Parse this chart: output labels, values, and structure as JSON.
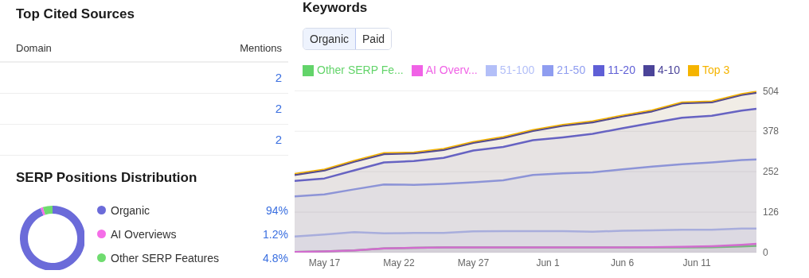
{
  "chart_data": [
    {
      "type": "other",
      "title": "Top Cited Sources",
      "annotations": [
        "Domain",
        "Mentions"
      ],
      "categories": [
        null,
        null,
        null
      ],
      "values": [
        2,
        2,
        2
      ],
      "data_labels": true
    },
    {
      "type": "donut",
      "title": "SERP Positions Distribution",
      "categories": [
        "Organic",
        "AI Overviews",
        "Other SERP Features"
      ],
      "values": [
        94,
        1.2,
        4.8
      ],
      "colors": [
        "#6b6bd9",
        "#f56de8",
        "#6fdc6f"
      ],
      "value_labels": [
        "94%",
        "1.2%",
        "4.8%"
      ],
      "legend": "right"
    },
    {
      "type": "area",
      "title": "Keywords",
      "annotations": [
        "Organic",
        "Paid"
      ],
      "x": [
        "--05-15",
        "--05-17",
        "--05-19",
        "--05-21",
        "--05-23",
        "--05-25",
        "--05-27",
        "--05-29",
        "--05-31",
        "--06-02",
        "--06-04",
        "--06-06",
        "--06-08",
        "--06-10",
        "--06-12",
        "--06-14",
        "--06-15"
      ],
      "series": [
        {
          "name": "Top 3",
          "color": "#f5b400",
          "values": [
            246,
            260,
            287,
            311,
            313,
            324,
            346,
            361,
            383,
            399,
            410,
            428,
            444,
            469,
            472,
            495,
            502
          ]
        },
        {
          "name": "4-10",
          "color": "#4b4499",
          "values": [
            242,
            256,
            283,
            307,
            309,
            320,
            342,
            357,
            379,
            395,
            406,
            424,
            440,
            465,
            468,
            491,
            498
          ]
        },
        {
          "name": "11-20",
          "color": "#5f5fd6",
          "values": [
            223,
            231,
            256,
            281,
            285,
            295,
            318,
            329,
            350,
            359,
            370,
            387,
            404,
            420,
            426,
            442,
            448
          ]
        },
        {
          "name": "21-50",
          "color": "#8f9df0",
          "values": [
            175,
            181,
            197,
            212,
            211,
            214,
            219,
            225,
            242,
            247,
            250,
            259,
            268,
            275,
            281,
            288,
            290
          ]
        },
        {
          "name": "51-100",
          "color": "#b3bff8",
          "values": [
            50,
            56,
            64,
            60,
            61,
            61,
            66,
            67,
            67,
            67,
            65,
            68,
            69,
            71,
            71,
            75,
            75
          ]
        },
        {
          "name": "AI Overv...",
          "color": "#f062e6",
          "values": [
            2,
            4,
            7,
            13,
            15,
            16,
            16,
            16,
            16,
            16,
            16,
            16,
            17,
            18,
            20,
            24,
            27
          ]
        },
        {
          "name": "Other SERP Fe...",
          "color": "#63d46a",
          "values": [
            2,
            4,
            7,
            13,
            15,
            16,
            16,
            16,
            16,
            16,
            16,
            16,
            16,
            16,
            17,
            19,
            21
          ]
        }
      ],
      "xlim": [
        "--05-15",
        "--06-15"
      ],
      "xticks": [
        {
          "value": "--05-17",
          "label": "May 17"
        },
        {
          "value": "--05-22",
          "label": "May 22"
        },
        {
          "value": "--05-27",
          "label": "May 27"
        },
        {
          "value": "--06-01",
          "label": "Jun 1"
        },
        {
          "value": "--06-06",
          "label": "Jun 6"
        },
        {
          "value": "--06-11",
          "label": "Jun 11"
        }
      ],
      "ylim": [
        0,
        504
      ],
      "yticks": [
        0,
        126,
        252,
        378,
        504
      ],
      "grid": "y",
      "legend": "top"
    }
  ]
}
